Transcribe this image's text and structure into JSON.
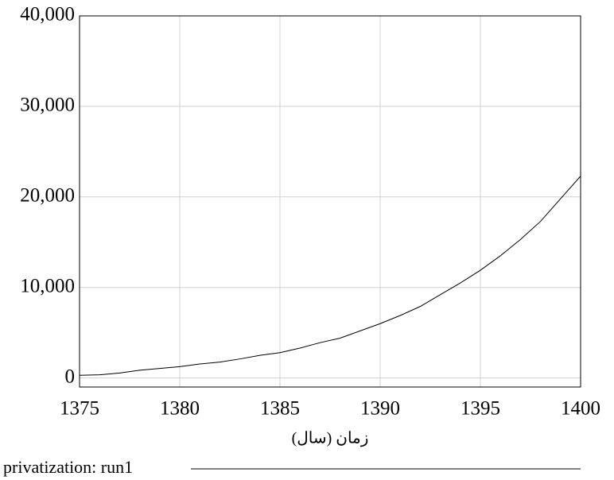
{
  "chart_data": {
    "type": "line",
    "x_label": "زمان (سال)",
    "x": [
      1375,
      1376,
      1377,
      1378,
      1379,
      1380,
      1381,
      1382,
      1383,
      1384,
      1385,
      1386,
      1387,
      1388,
      1389,
      1390,
      1391,
      1392,
      1393,
      1394,
      1395,
      1396,
      1397,
      1398,
      1399,
      1400
    ],
    "series": [
      {
        "name": "privatization: run1",
        "color": "#000000",
        "values": [
          300,
          350,
          550,
          850,
          1050,
          1250,
          1550,
          1750,
          2100,
          2500,
          2800,
          3300,
          3900,
          4400,
          5200,
          6000,
          6900,
          7900,
          9200,
          10500,
          11900,
          13500,
          15300,
          17300,
          19800,
          22300
        ]
      }
    ],
    "xlim": [
      1375,
      1400
    ],
    "xticks": [
      1375,
      1380,
      1385,
      1390,
      1395,
      1400
    ],
    "ylim": [
      -1000,
      40000
    ],
    "yticks": [
      0,
      {
        "value": 10000,
        "label": "10,000"
      },
      {
        "value": 20000,
        "label": "20,000"
      },
      {
        "value": 30000,
        "label": "30,000"
      },
      {
        "value": 40000,
        "label": "40,000"
      }
    ],
    "grid": true
  }
}
